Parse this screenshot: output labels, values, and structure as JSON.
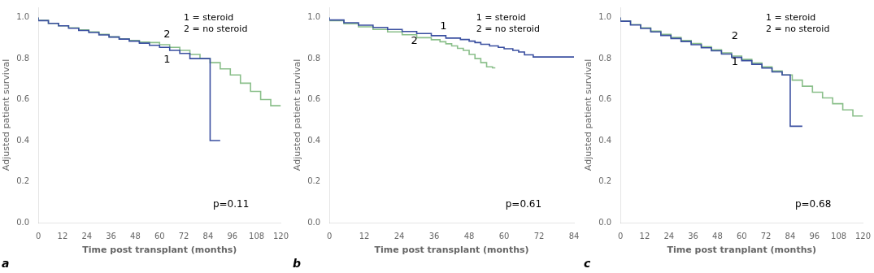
{
  "chart_data": [
    {
      "type": "step",
      "title": "a",
      "x_label": "Time post transplant (months)",
      "y_label": "Adjusted patient survival",
      "xlim": [
        0,
        120
      ],
      "xticks": [
        0,
        12,
        24,
        36,
        48,
        60,
        72,
        84,
        96,
        108,
        120
      ],
      "ylim": [
        0.0,
        1.05
      ],
      "yticks": [
        {
          "value": 0.0,
          "label": "0.0"
        },
        0.2,
        0.4,
        0.6,
        0.8,
        {
          "value": 1.0,
          "label": "1.0"
        }
      ],
      "grid": false,
      "series": [
        {
          "color": "#8abf8a",
          "x": [
            0,
            5,
            10,
            15,
            20,
            25,
            30,
            35,
            40,
            45,
            50,
            55,
            60,
            65,
            70,
            75,
            80,
            85,
            90,
            95,
            100,
            105,
            110,
            115,
            120
          ],
          "values": [
            1.0,
            0.986,
            0.972,
            0.96,
            0.95,
            0.94,
            0.93,
            0.918,
            0.906,
            0.896,
            0.888,
            0.88,
            0.878,
            0.868,
            0.855,
            0.84,
            0.82,
            0.8,
            0.78,
            0.75,
            0.72,
            0.68,
            0.64,
            0.6,
            0.57
          ]
        },
        {
          "color": "#3a4fa0",
          "x": [
            0,
            5,
            10,
            15,
            20,
            25,
            30,
            35,
            40,
            45,
            50,
            55,
            60,
            65,
            70,
            75,
            80,
            85,
            85,
            90
          ],
          "values": [
            1.0,
            0.985,
            0.972,
            0.96,
            0.948,
            0.937,
            0.927,
            0.915,
            0.905,
            0.895,
            0.885,
            0.875,
            0.865,
            0.855,
            0.84,
            0.825,
            0.8,
            0.8,
            0.6,
            0.4
          ]
        }
      ],
      "annotations": [
        {
          "text": "1",
          "x": 62,
          "y": 0.78
        },
        {
          "text": "2",
          "x": 62,
          "y": 0.905
        },
        {
          "text": "p=0.11"
        },
        {
          "text": "1 = steroid\n2 = no steroid"
        }
      ]
    },
    {
      "type": "step",
      "title": "b",
      "x_label": "Time post transplant (months)",
      "y_label": "Adjusted patient survival",
      "xlim": [
        0,
        84
      ],
      "xticks": [
        0,
        12,
        24,
        36,
        48,
        60,
        72,
        84
      ],
      "ylim": [
        0.0,
        1.05
      ],
      "yticks": [
        {
          "value": 0.0,
          "label": "0.0"
        },
        0.2,
        0.4,
        0.6,
        0.8,
        {
          "value": 1.0,
          "label": "1.0"
        }
      ],
      "grid": false,
      "series": [
        {
          "color": "#8abf8a",
          "x": [
            0,
            5,
            10,
            15,
            20,
            25,
            30,
            35,
            38,
            40,
            42,
            44,
            46,
            48,
            50,
            52,
            54,
            56,
            57
          ],
          "values": [
            1.0,
            0.985,
            0.97,
            0.955,
            0.942,
            0.93,
            0.916,
            0.902,
            0.892,
            0.882,
            0.872,
            0.862,
            0.85,
            0.84,
            0.82,
            0.8,
            0.78,
            0.76,
            0.755
          ]
        },
        {
          "color": "#3a4fa0",
          "x": [
            0,
            5,
            10,
            15,
            20,
            25,
            30,
            35,
            40,
            45,
            48,
            50,
            52,
            55,
            58,
            60,
            63,
            65,
            67,
            70,
            72,
            72,
            84
          ],
          "values": [
            1.0,
            0.988,
            0.975,
            0.963,
            0.952,
            0.942,
            0.932,
            0.922,
            0.912,
            0.9,
            0.893,
            0.885,
            0.878,
            0.87,
            0.862,
            0.855,
            0.848,
            0.84,
            0.832,
            0.818,
            0.808,
            0.808,
            0.808
          ]
        }
      ],
      "annotations": [
        {
          "text": "1",
          "x": 38,
          "y": 0.945
        },
        {
          "text": "2",
          "x": 28,
          "y": 0.872
        },
        {
          "text": "p=0.61"
        },
        {
          "text": "1 = steroid\n2 = no steroid"
        }
      ]
    },
    {
      "type": "step",
      "title": "c",
      "x_label": "Time post tranplant (months)",
      "y_label": "Adjusted patient survival",
      "xlim": [
        0,
        120
      ],
      "xticks": [
        0,
        12,
        24,
        36,
        48,
        60,
        72,
        84,
        96,
        108,
        120
      ],
      "ylim": [
        0.0,
        1.05
      ],
      "yticks": [
        {
          "value": 0.0,
          "label": "0.0"
        },
        0.2,
        0.4,
        0.6,
        0.8,
        {
          "value": 1.0,
          "label": "1.0"
        }
      ],
      "grid": false,
      "series": [
        {
          "color": "#8abf8a",
          "x": [
            0,
            5,
            10,
            15,
            20,
            25,
            30,
            35,
            40,
            45,
            50,
            55,
            60,
            65,
            70,
            75,
            80,
            85,
            90,
            95,
            100,
            105,
            110,
            115,
            120
          ],
          "values": [
            1.0,
            0.983,
            0.966,
            0.95,
            0.934,
            0.918,
            0.903,
            0.888,
            0.873,
            0.858,
            0.843,
            0.828,
            0.812,
            0.796,
            0.778,
            0.76,
            0.74,
            0.72,
            0.695,
            0.665,
            0.636,
            0.608,
            0.58,
            0.55,
            0.52
          ]
        },
        {
          "color": "#3a4fa0",
          "x": [
            0,
            5,
            10,
            15,
            20,
            25,
            30,
            35,
            40,
            45,
            50,
            55,
            60,
            65,
            70,
            75,
            80,
            84,
            84,
            90
          ],
          "values": [
            1.0,
            0.982,
            0.964,
            0.947,
            0.93,
            0.913,
            0.898,
            0.883,
            0.868,
            0.853,
            0.838,
            0.822,
            0.806,
            0.79,
            0.772,
            0.754,
            0.735,
            0.72,
            0.6,
            0.47
          ]
        }
      ],
      "annotations": [
        {
          "text": "1",
          "x": 55,
          "y": 0.77
        },
        {
          "text": "2",
          "x": 55,
          "y": 0.895
        },
        {
          "text": "p=0.68"
        },
        {
          "text": "1 = steroid\n2 = no steroid"
        }
      ]
    }
  ]
}
